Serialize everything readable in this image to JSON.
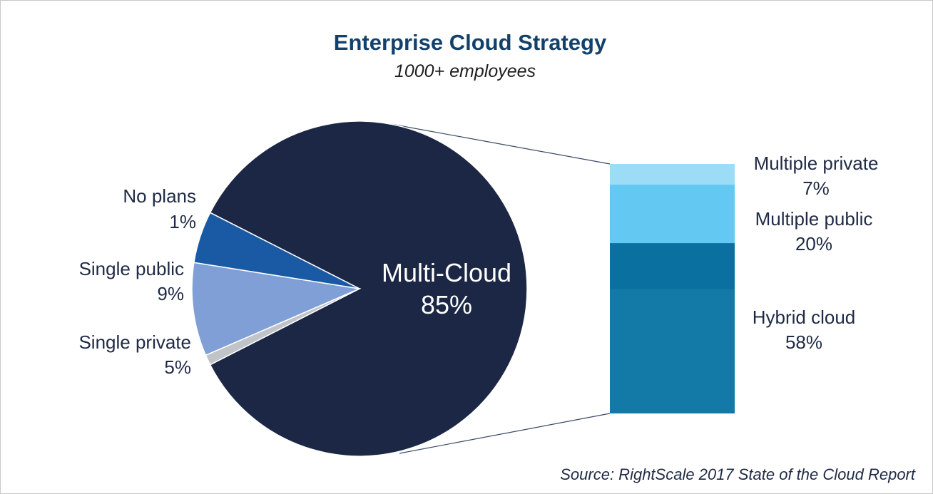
{
  "chart_data": {
    "type": "pie",
    "title": "Enterprise Cloud Strategy",
    "subtitle": "1000+ employees",
    "source": "Source: RightScale 2017 State of the Cloud Report",
    "pie": {
      "slices": [
        {
          "name": "Multi-Cloud",
          "value": 85,
          "display": "85%",
          "color": "#1b2744"
        },
        {
          "name": "No plans",
          "value": 1,
          "display": "1%",
          "color": "#c0c3c8"
        },
        {
          "name": "Single public",
          "value": 9,
          "display": "9%",
          "color": "#7f9fd6"
        },
        {
          "name": "Single private",
          "value": 5,
          "display": "5%",
          "color": "#1a5aa5"
        }
      ]
    },
    "breakdown": {
      "of": "Multi-Cloud",
      "segments": [
        {
          "name": "Multiple private",
          "value": 7,
          "display": "7%",
          "color": "#9ddcf6"
        },
        {
          "name": "Multiple public",
          "value": 20,
          "display": "20%",
          "color": "#63c9f2"
        },
        {
          "name": "Hybrid cloud",
          "value": 58,
          "display": "58%",
          "color": "#137aa8",
          "accent_color": "#0a709f"
        }
      ]
    }
  }
}
